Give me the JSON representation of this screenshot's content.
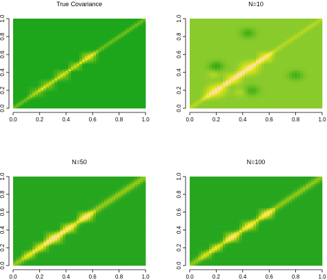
{
  "chart_data": [
    {
      "type": "heatmap",
      "title": "True Covariance",
      "xlabel": "",
      "ylabel": "",
      "xlim": [
        0,
        1
      ],
      "ylim": [
        0,
        1
      ],
      "x_ticks": [
        "0.0",
        "0.2",
        "0.4",
        "0.6",
        "0.8",
        "1.0"
      ],
      "y_ticks": [
        "0.0",
        "0.2",
        "0.4",
        "0.6",
        "0.8",
        "1.0"
      ],
      "background_color": "#1da61c",
      "diagonal": {
        "strength": 0.3,
        "width": 0.018
      },
      "blocks": [
        {
          "center": 0.18,
          "size": 0.06,
          "strength": 0.25
        },
        {
          "center": 0.26,
          "size": 0.06,
          "strength": 0.35
        },
        {
          "center": 0.37,
          "size": 0.06,
          "strength": 0.4
        },
        {
          "center": 0.47,
          "size": 0.05,
          "strength": 0.35
        },
        {
          "center": 0.57,
          "size": 0.06,
          "strength": 0.55
        }
      ],
      "off_diagonal": []
    },
    {
      "type": "heatmap",
      "title": "N=10",
      "xlabel": "",
      "ylabel": "",
      "xlim": [
        0,
        1
      ],
      "ylim": [
        0,
        1
      ],
      "x_ticks": [
        "0.0",
        "0.2",
        "0.4",
        "0.6",
        "0.8",
        "1.0"
      ],
      "y_ticks": [
        "0.0",
        "0.2",
        "0.4",
        "0.6",
        "0.8",
        "1.0"
      ],
      "background_color": "#8acb2c",
      "diagonal": {
        "strength": 0.35,
        "width": 0.02
      },
      "blocks": [
        {
          "center": 0.2,
          "size": 0.09,
          "strength": 0.95
        },
        {
          "center": 0.33,
          "size": 0.07,
          "strength": 0.85
        },
        {
          "center": 0.45,
          "size": 0.09,
          "strength": 0.95
        },
        {
          "center": 0.57,
          "size": 0.06,
          "strength": 0.8
        }
      ],
      "off_diagonal": [
        {
          "x": 0.2,
          "y": 0.47,
          "size": 0.06,
          "strength": -0.6
        },
        {
          "x": 0.47,
          "y": 0.2,
          "size": 0.06,
          "strength": -0.5
        },
        {
          "x": 0.44,
          "y": 0.84,
          "size": 0.06,
          "strength": -0.5
        },
        {
          "x": 0.8,
          "y": 0.37,
          "size": 0.06,
          "strength": -0.5
        },
        {
          "x": 0.38,
          "y": 0.18,
          "size": 0.05,
          "strength": 0.3
        },
        {
          "x": 0.18,
          "y": 0.38,
          "size": 0.05,
          "strength": 0.3
        }
      ]
    },
    {
      "type": "heatmap",
      "title": "N=50",
      "xlabel": "",
      "ylabel": "",
      "xlim": [
        0,
        1
      ],
      "ylim": [
        0,
        1
      ],
      "x_ticks": [
        "0.0",
        "0.2",
        "0.4",
        "0.6",
        "0.8",
        "1.0"
      ],
      "y_ticks": [
        "0.0",
        "0.2",
        "0.4",
        "0.6",
        "0.8",
        "1.0"
      ],
      "background_color": "#26a61e",
      "diagonal": {
        "strength": 0.42,
        "width": 0.03
      },
      "blocks": [
        {
          "center": 0.12,
          "size": 0.05,
          "strength": 0.35
        },
        {
          "center": 0.21,
          "size": 0.06,
          "strength": 0.45
        },
        {
          "center": 0.31,
          "size": 0.07,
          "strength": 0.75
        },
        {
          "center": 0.42,
          "size": 0.06,
          "strength": 0.6
        },
        {
          "center": 0.55,
          "size": 0.06,
          "strength": 0.65
        }
      ],
      "off_diagonal": []
    },
    {
      "type": "heatmap",
      "title": "N=100",
      "xlabel": "",
      "ylabel": "",
      "xlim": [
        0,
        1
      ],
      "ylim": [
        0,
        1
      ],
      "x_ticks": [
        "0.0",
        "0.2",
        "0.4",
        "0.6",
        "0.8",
        "1.0"
      ],
      "y_ticks": [
        "0.0",
        "0.2",
        "0.4",
        "0.6",
        "0.8",
        "1.0"
      ],
      "background_color": "#26a61e",
      "diagonal": {
        "strength": 0.4,
        "width": 0.028
      },
      "blocks": [
        {
          "center": 0.12,
          "size": 0.05,
          "strength": 0.3
        },
        {
          "center": 0.2,
          "size": 0.05,
          "strength": 0.4
        },
        {
          "center": 0.32,
          "size": 0.06,
          "strength": 0.65
        },
        {
          "center": 0.45,
          "size": 0.06,
          "strength": 0.55
        },
        {
          "center": 0.58,
          "size": 0.06,
          "strength": 0.6
        }
      ],
      "off_diagonal": []
    }
  ]
}
